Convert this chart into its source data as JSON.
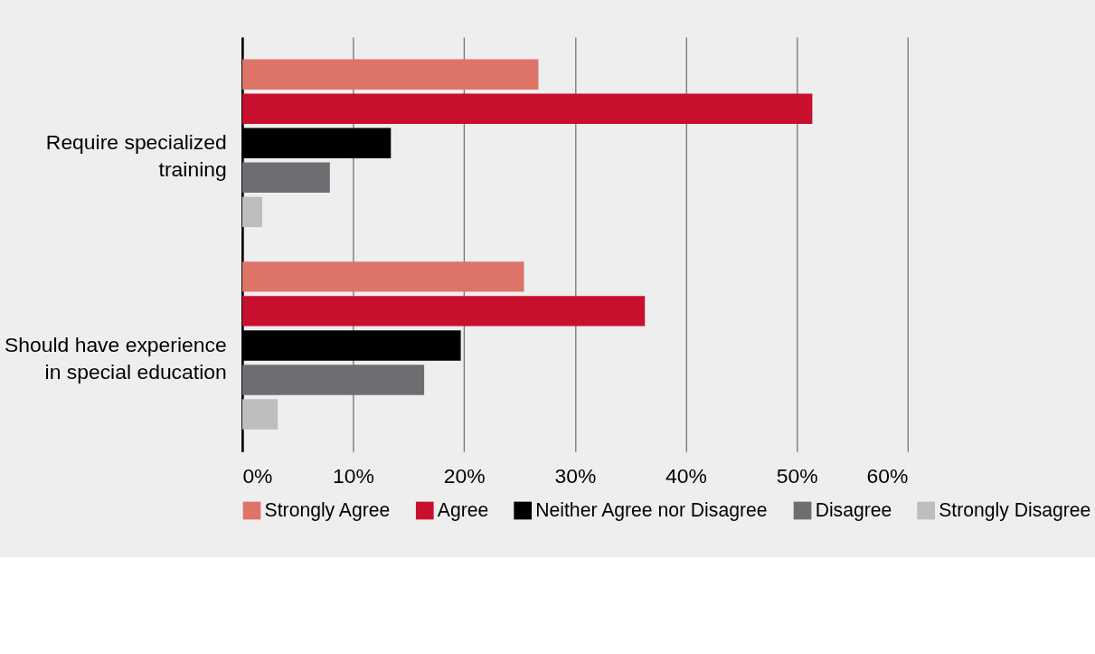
{
  "chart_data": {
    "type": "bar",
    "orientation": "horizontal",
    "categories": [
      "Require specialized training",
      "Should have experience in special education"
    ],
    "series": [
      {
        "name": "Strongly Agree",
        "color": "#de7468",
        "values": [
          26.7,
          25.4
        ]
      },
      {
        "name": "Agree",
        "color": "#c8102e",
        "values": [
          51.4,
          36.3
        ]
      },
      {
        "name": "Neither Agree nor Disagree",
        "color": "#000000",
        "values": [
          13.4,
          19.7
        ]
      },
      {
        "name": "Disagree",
        "color": "#6d6e71",
        "values": [
          7.9,
          16.4
        ]
      },
      {
        "name": "Strongly Disagree",
        "color": "#bcbec0",
        "values": [
          1.8,
          3.2
        ]
      }
    ],
    "xlim": [
      0,
      60
    ],
    "xticks": [
      {
        "value": 0,
        "label": "0%"
      },
      {
        "value": 10,
        "label": "10%"
      },
      {
        "value": 20,
        "label": "20%"
      },
      {
        "value": 30,
        "label": "30%"
      },
      {
        "value": 40,
        "label": "40%"
      },
      {
        "value": 50,
        "label": "50%"
      },
      {
        "value": 60,
        "label": "60%"
      }
    ],
    "grid": "x",
    "legend": "bottom"
  }
}
